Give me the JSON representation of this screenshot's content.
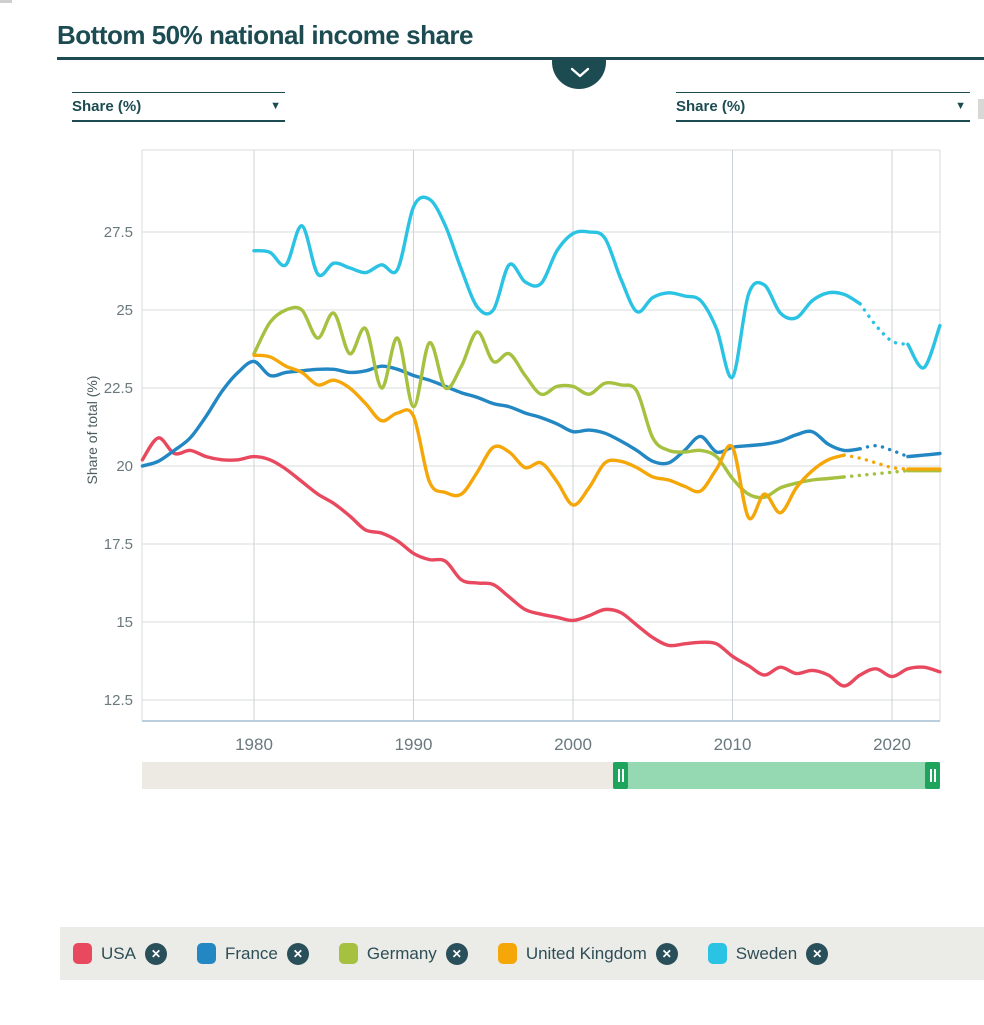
{
  "header": {
    "title": "Bottom 50% national income share"
  },
  "controls": {
    "left_select": {
      "value": "Share (%)"
    },
    "right_select": {
      "value": "Share (%)"
    }
  },
  "chart_data": {
    "type": "line",
    "title": "Bottom 50% national income share",
    "xlabel": "",
    "ylabel": "Share of total (%)",
    "xlim": [
      1973,
      2023
    ],
    "ylim": [
      12,
      30
    ],
    "grid": true,
    "legend_position": "bottom",
    "yticks": [
      27.5,
      25,
      22.5,
      20,
      17.5,
      15,
      12.5
    ],
    "xticks": [
      1980,
      1990,
      2000,
      2010,
      2020
    ],
    "note": "dotted = estimated/extrapolated segment (years)",
    "series": [
      {
        "name": "USA",
        "color": "#e8495f",
        "start_year": 1973,
        "dotted": null,
        "values": [
          20.2,
          20.9,
          20.4,
          20.5,
          20.3,
          20.2,
          20.2,
          20.3,
          20.2,
          19.9,
          19.5,
          19.1,
          18.8,
          18.4,
          17.95,
          17.85,
          17.6,
          17.2,
          17.0,
          16.95,
          16.35,
          16.25,
          16.2,
          15.8,
          15.4,
          15.25,
          15.15,
          15.05,
          15.2,
          15.4,
          15.3,
          14.9,
          14.5,
          14.25,
          14.3,
          14.35,
          14.3,
          13.9,
          13.6,
          13.3,
          13.55,
          13.35,
          13.45,
          13.3,
          12.95,
          13.3,
          13.5,
          13.25,
          13.5,
          13.55,
          13.4
        ]
      },
      {
        "name": "France",
        "color": "#2287c3",
        "start_year": 1973,
        "dotted": [
          2018,
          2021
        ],
        "values": [
          20.0,
          20.15,
          20.5,
          20.9,
          21.6,
          22.4,
          23.0,
          23.35,
          22.9,
          23.0,
          23.05,
          23.1,
          23.1,
          23.0,
          23.05,
          23.2,
          23.1,
          22.9,
          22.75,
          22.55,
          22.35,
          22.2,
          22.0,
          21.9,
          21.7,
          21.55,
          21.35,
          21.1,
          21.15,
          21.05,
          20.8,
          20.5,
          20.15,
          20.1,
          20.5,
          20.95,
          20.45,
          20.6,
          20.65,
          20.7,
          20.8,
          21.0,
          21.1,
          20.7,
          20.5,
          20.55,
          20.65,
          20.5,
          20.3,
          20.35,
          20.4
        ]
      },
      {
        "name": "Germany",
        "color": "#a5c13f",
        "start_year": 1980,
        "dotted": [
          2017,
          2021
        ],
        "values": [
          23.6,
          24.6,
          25.0,
          25.0,
          24.1,
          24.9,
          23.6,
          24.4,
          22.5,
          24.1,
          21.9,
          23.95,
          22.5,
          23.2,
          24.3,
          23.35,
          23.6,
          22.9,
          22.3,
          22.55,
          22.55,
          22.3,
          22.65,
          22.6,
          22.4,
          20.9,
          20.5,
          20.45,
          20.5,
          20.3,
          19.6,
          19.1,
          19.0,
          19.3,
          19.45,
          19.55,
          19.6,
          19.65,
          19.7,
          19.75,
          19.8,
          19.85,
          19.85,
          19.85
        ]
      },
      {
        "name": "United Kingdom",
        "color": "#f5a70a",
        "start_year": 1980,
        "dotted": [
          2017,
          2021
        ],
        "values": [
          23.55,
          23.5,
          23.2,
          23.0,
          22.6,
          22.75,
          22.5,
          22.0,
          21.45,
          21.7,
          21.6,
          19.5,
          19.15,
          19.1,
          19.8,
          20.6,
          20.45,
          19.95,
          20.1,
          19.5,
          18.75,
          19.3,
          20.1,
          20.15,
          19.95,
          19.65,
          19.55,
          19.35,
          19.2,
          19.9,
          20.6,
          18.35,
          19.1,
          18.5,
          19.3,
          19.85,
          20.2,
          20.35,
          20.25,
          20.1,
          19.95,
          19.9,
          19.9,
          19.9
        ]
      },
      {
        "name": "Sweden",
        "color": "#2bc3e4",
        "start_year": 1980,
        "dotted": [
          2018,
          2021
        ],
        "values": [
          26.9,
          26.85,
          26.45,
          27.7,
          26.15,
          26.5,
          26.35,
          26.2,
          26.45,
          26.3,
          28.3,
          28.55,
          27.7,
          26.3,
          25.1,
          25.0,
          26.45,
          25.9,
          25.85,
          26.9,
          27.45,
          27.5,
          27.3,
          26.0,
          24.95,
          25.4,
          25.55,
          25.45,
          25.3,
          24.4,
          22.85,
          25.5,
          25.8,
          24.9,
          24.75,
          25.3,
          25.55,
          25.5,
          25.2,
          24.5,
          24.0,
          23.9,
          23.15,
          24.5
        ]
      }
    ]
  },
  "timeline": {
    "full_start_year": 1973,
    "full_end_year": 2023,
    "range_start_year": 2003,
    "range_end_year": 2023
  },
  "legend": {
    "remove_icon": "✕",
    "items": [
      {
        "label": "USA",
        "color": "#e8495f"
      },
      {
        "label": "France",
        "color": "#2287c3"
      },
      {
        "label": "Germany",
        "color": "#a5c13f"
      },
      {
        "label": "United Kingdom",
        "color": "#f5a70a"
      },
      {
        "label": "Sweden",
        "color": "#2bc3e4"
      }
    ]
  },
  "style": {
    "accent": "#1c4c52",
    "grid_color": "#d9dcde",
    "axis_line_color": "#b9cfdd",
    "tick_color": "#69797d",
    "slider_track": "#edeae3",
    "slider_range": "#95d9b3",
    "slider_handle": "#1ea45d",
    "legend_bg": "#ebece7"
  }
}
